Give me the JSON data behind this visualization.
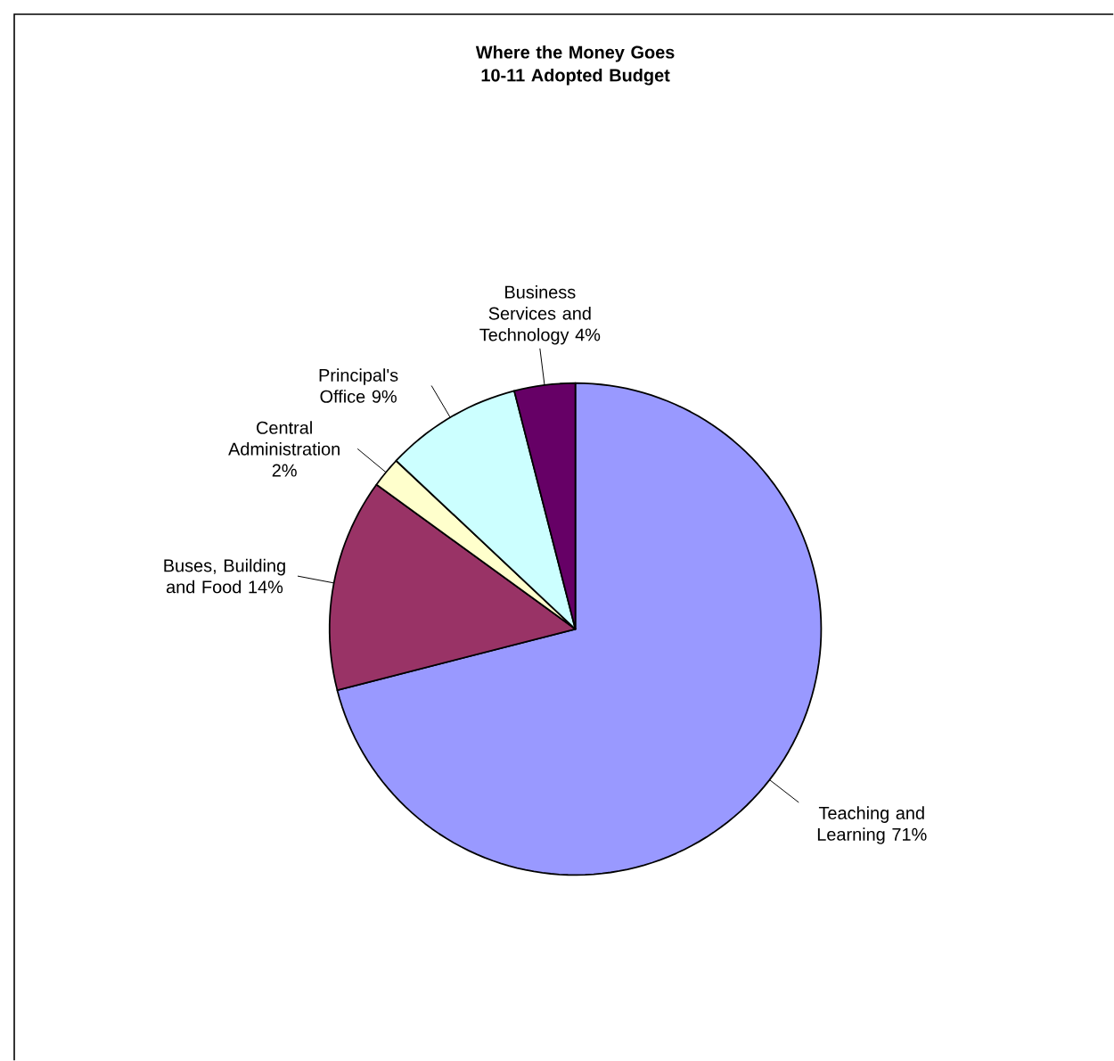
{
  "chart_data": {
    "type": "pie",
    "title": "Where the Money Goes 10-11 Adopted Budget",
    "categories": [
      "Teaching and Learning",
      "Buses, Building and Food",
      "Central Administration",
      "Principal's Office",
      "Business Services and Technology"
    ],
    "values": [
      71,
      14,
      2,
      9,
      4
    ],
    "value_labels": [
      "71%",
      "14%",
      "2%",
      "9%",
      "4%"
    ],
    "colors": [
      "#9999ff",
      "#993366",
      "#ffffcc",
      "#ccffff",
      "#660066"
    ]
  }
}
